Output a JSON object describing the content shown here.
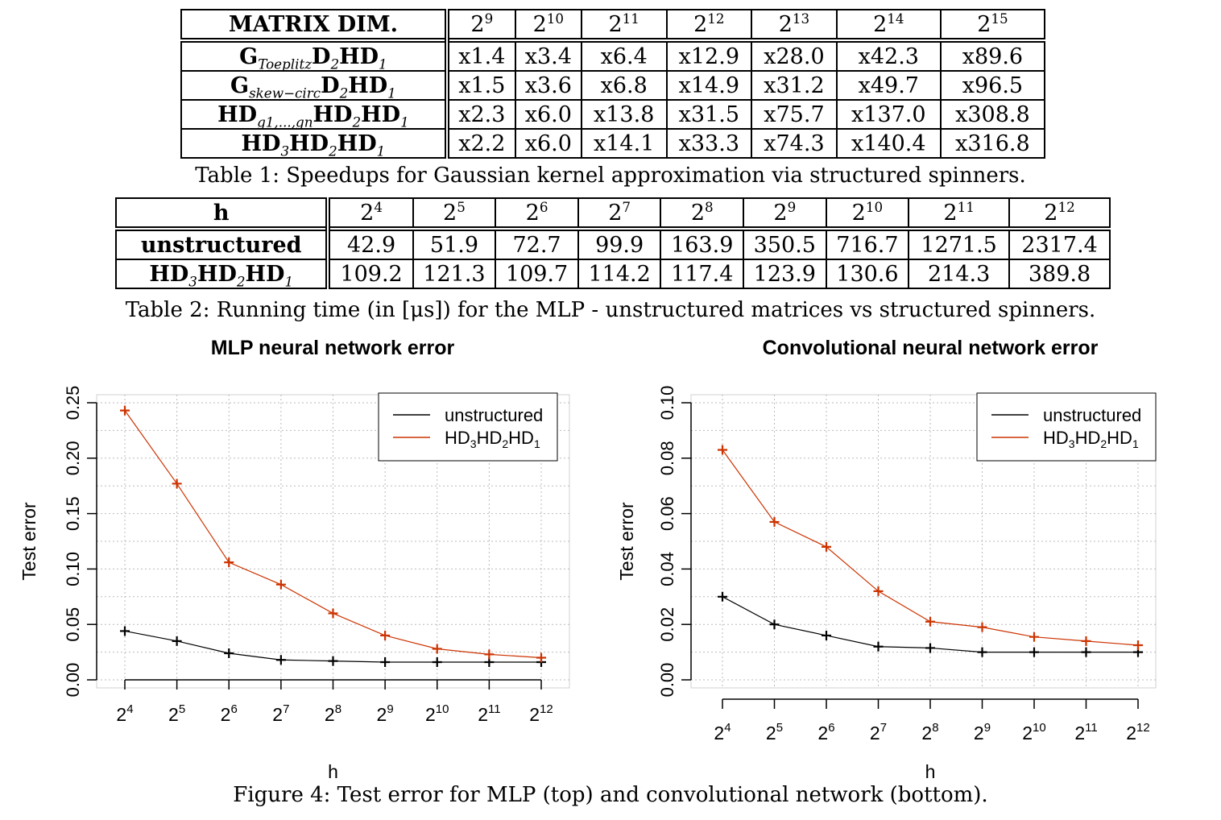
{
  "table1": {
    "header_label": "MATRIX DIM.",
    "columns": [
      {
        "base": "2",
        "exp": "9"
      },
      {
        "base": "2",
        "exp": "10"
      },
      {
        "base": "2",
        "exp": "11"
      },
      {
        "base": "2",
        "exp": "12"
      },
      {
        "base": "2",
        "exp": "13"
      },
      {
        "base": "2",
        "exp": "14"
      },
      {
        "base": "2",
        "exp": "15"
      }
    ],
    "rows": [
      {
        "label": [
          {
            "t": "G"
          },
          {
            "t": "Toeplitz",
            "sub": true
          },
          {
            "t": "D"
          },
          {
            "t": "2",
            "sub": true
          },
          {
            "t": "HD"
          },
          {
            "t": "1",
            "sub": true
          }
        ],
        "values": [
          "x1.4",
          "x3.4",
          "x6.4",
          "x12.9",
          "x28.0",
          "x42.3",
          "x89.6"
        ]
      },
      {
        "label": [
          {
            "t": "G"
          },
          {
            "t": "skew−circ",
            "sub": true
          },
          {
            "t": "D"
          },
          {
            "t": "2",
            "sub": true
          },
          {
            "t": "HD"
          },
          {
            "t": "1",
            "sub": true
          }
        ],
        "values": [
          "x1.5",
          "x3.6",
          "x6.8",
          "x14.9",
          "x31.2",
          "x49.7",
          "x96.5"
        ]
      },
      {
        "label": [
          {
            "t": "HD"
          },
          {
            "t": "g1,...,gn",
            "sub": true
          },
          {
            "t": "HD"
          },
          {
            "t": "2",
            "sub": true
          },
          {
            "t": "HD"
          },
          {
            "t": "1",
            "sub": true
          }
        ],
        "values": [
          "x2.3",
          "x6.0",
          "x13.8",
          "x31.5",
          "x75.7",
          "x137.0",
          "x308.8"
        ]
      },
      {
        "label": [
          {
            "t": "HD"
          },
          {
            "t": "3",
            "sub": true
          },
          {
            "t": "HD"
          },
          {
            "t": "2",
            "sub": true
          },
          {
            "t": "HD"
          },
          {
            "t": "1",
            "sub": true
          }
        ],
        "values": [
          "x2.2",
          "x6.0",
          "x14.1",
          "x33.3",
          "x74.3",
          "x140.4",
          "x316.8"
        ]
      }
    ],
    "caption": "Table 1: Speedups for Gaussian kernel approximation via structured spinners."
  },
  "table2": {
    "header_label": "h",
    "columns": [
      {
        "base": "2",
        "exp": "4"
      },
      {
        "base": "2",
        "exp": "5"
      },
      {
        "base": "2",
        "exp": "6"
      },
      {
        "base": "2",
        "exp": "7"
      },
      {
        "base": "2",
        "exp": "8"
      },
      {
        "base": "2",
        "exp": "9"
      },
      {
        "base": "2",
        "exp": "10"
      },
      {
        "base": "2",
        "exp": "11"
      },
      {
        "base": "2",
        "exp": "12"
      }
    ],
    "rows": [
      {
        "label": [
          {
            "t": "unstructured"
          }
        ],
        "values": [
          "42.9",
          "51.9",
          "72.7",
          "99.9",
          "163.9",
          "350.5",
          "716.7",
          "1271.5",
          "2317.4"
        ]
      },
      {
        "label": [
          {
            "t": "HD"
          },
          {
            "t": "3",
            "sub": true
          },
          {
            "t": "HD"
          },
          {
            "t": "2",
            "sub": true
          },
          {
            "t": "HD"
          },
          {
            "t": "1",
            "sub": true
          }
        ],
        "values": [
          "109.2",
          "121.3",
          "109.7",
          "114.2",
          "117.4",
          "123.9",
          "130.6",
          "214.3",
          "389.8"
        ]
      }
    ],
    "caption": "Table 2: Running time (in [μs]) for the MLP - unstructured matrices vs structured spinners."
  },
  "figure_caption": "Figure 4: Test error for MLP (top) and convolutional network (bottom).",
  "chart_data": [
    {
      "type": "line",
      "title": "MLP neural network error",
      "xlabel": "h",
      "ylabel": "Test error",
      "x_ticks": [
        {
          "base": "2",
          "exp": "4"
        },
        {
          "base": "2",
          "exp": "5"
        },
        {
          "base": "2",
          "exp": "6"
        },
        {
          "base": "2",
          "exp": "7"
        },
        {
          "base": "2",
          "exp": "8"
        },
        {
          "base": "2",
          "exp": "9"
        },
        {
          "base": "2",
          "exp": "10"
        },
        {
          "base": "2",
          "exp": "11"
        },
        {
          "base": "2",
          "exp": "12"
        }
      ],
      "y_ticks": [
        "0.00",
        "0.05",
        "0.10",
        "0.15",
        "0.20",
        "0.25"
      ],
      "ylim": [
        0,
        0.25
      ],
      "grid": true,
      "legend_position": "top-right",
      "series": [
        {
          "name": "unstructured",
          "name_sub": [
            {
              "t": "unstructured"
            }
          ],
          "color": "#000000",
          "values": [
            0.044,
            0.035,
            0.024,
            0.018,
            0.017,
            0.016,
            0.016,
            0.016,
            0.016
          ]
        },
        {
          "name": "HD3HD2HD1",
          "name_sub": [
            {
              "t": "HD"
            },
            {
              "t": "3",
              "sub": true
            },
            {
              "t": "HD"
            },
            {
              "t": "2",
              "sub": true
            },
            {
              "t": "HD"
            },
            {
              "t": "1",
              "sub": true
            }
          ],
          "color": "#cc3300",
          "values": [
            0.243,
            0.177,
            0.106,
            0.086,
            0.06,
            0.04,
            0.028,
            0.023,
            0.02
          ]
        }
      ]
    },
    {
      "type": "line",
      "title": "Convolutional neural network error",
      "xlabel": "h",
      "ylabel": "Test error",
      "x_ticks": [
        {
          "base": "2",
          "exp": "4"
        },
        {
          "base": "2",
          "exp": "5"
        },
        {
          "base": "2",
          "exp": "6"
        },
        {
          "base": "2",
          "exp": "7"
        },
        {
          "base": "2",
          "exp": "8"
        },
        {
          "base": "2",
          "exp": "9"
        },
        {
          "base": "2",
          "exp": "10"
        },
        {
          "base": "2",
          "exp": "11"
        },
        {
          "base": "2",
          "exp": "12"
        }
      ],
      "y_ticks": [
        "0.00",
        "0.02",
        "0.04",
        "0.06",
        "0.08",
        "0.10"
      ],
      "ylim": [
        0,
        0.1
      ],
      "grid": true,
      "legend_position": "top-right",
      "series": [
        {
          "name": "unstructured",
          "name_sub": [
            {
              "t": "unstructured"
            }
          ],
          "color": "#000000",
          "values": [
            0.03,
            0.02,
            0.016,
            0.012,
            0.0115,
            0.01,
            0.01,
            0.01,
            0.01
          ]
        },
        {
          "name": "HD3HD2HD1",
          "name_sub": [
            {
              "t": "HD"
            },
            {
              "t": "3",
              "sub": true
            },
            {
              "t": "HD"
            },
            {
              "t": "2",
              "sub": true
            },
            {
              "t": "HD"
            },
            {
              "t": "1",
              "sub": true
            }
          ],
          "color": "#cc3300",
          "values": [
            0.083,
            0.057,
            0.048,
            0.032,
            0.021,
            0.019,
            0.0155,
            0.014,
            0.0125
          ]
        }
      ]
    }
  ]
}
